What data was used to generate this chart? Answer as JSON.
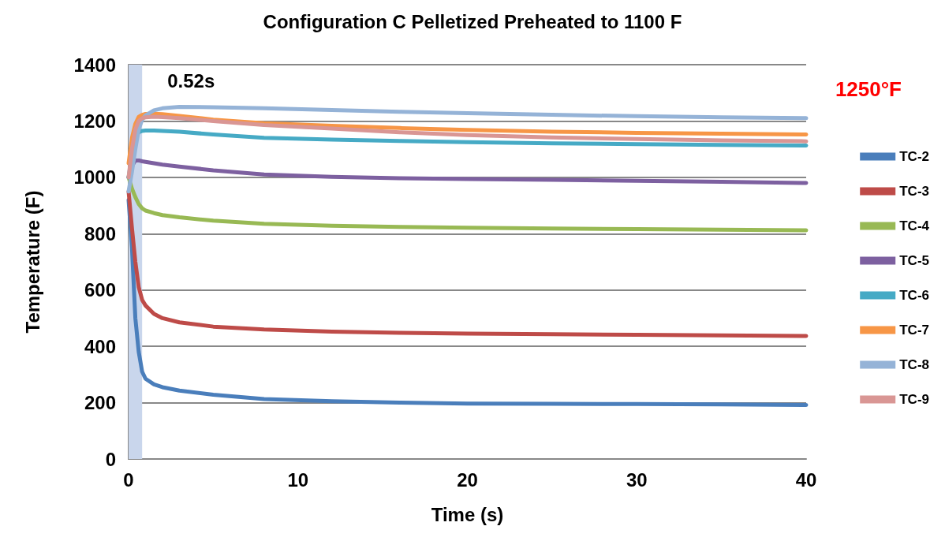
{
  "chart_data": {
    "type": "line",
    "title": "Configuration C Pelletized Preheated to 1100 F",
    "xlabel": "Time (s)",
    "ylabel": "Temperature (F)",
    "x": [
      0,
      0.2,
      0.4,
      0.6,
      0.8,
      1,
      1.5,
      2,
      3,
      5,
      8,
      12,
      16,
      20,
      25,
      30,
      35,
      40
    ],
    "series": [
      {
        "name": "TC-2",
        "color": "#4a7ebb",
        "values": [
          920,
          750,
          500,
          380,
          310,
          285,
          265,
          255,
          243,
          228,
          213,
          205,
          200,
          197,
          196,
          195,
          194,
          192
        ]
      },
      {
        "name": "TC-3",
        "color": "#be4b48",
        "values": [
          950,
          820,
          700,
          610,
          565,
          545,
          515,
          500,
          485,
          470,
          460,
          452,
          448,
          445,
          443,
          441,
          439,
          437
        ]
      },
      {
        "name": "TC-4",
        "color": "#98b954",
        "values": [
          1000,
          960,
          930,
          905,
          890,
          882,
          873,
          866,
          858,
          846,
          835,
          828,
          824,
          821,
          818,
          816,
          814,
          812
        ]
      },
      {
        "name": "TC-5",
        "color": "#7d60a0",
        "values": [
          1000,
          1040,
          1060,
          1060,
          1057,
          1055,
          1050,
          1045,
          1038,
          1025,
          1010,
          1002,
          997,
          994,
          991,
          988,
          984,
          980
        ]
      },
      {
        "name": "TC-6",
        "color": "#46aac5",
        "values": [
          1000,
          1080,
          1140,
          1160,
          1165,
          1166,
          1166,
          1165,
          1162,
          1152,
          1140,
          1134,
          1129,
          1125,
          1121,
          1118,
          1115,
          1113
        ]
      },
      {
        "name": "TC-7",
        "color": "#f79646",
        "values": [
          1050,
          1140,
          1190,
          1215,
          1222,
          1225,
          1226,
          1224,
          1218,
          1205,
          1192,
          1183,
          1175,
          1168,
          1162,
          1158,
          1155,
          1152
        ]
      },
      {
        "name": "TC-8",
        "color": "#95b3d7",
        "values": [
          950,
          1020,
          1100,
          1170,
          1205,
          1220,
          1238,
          1245,
          1250,
          1249,
          1245,
          1239,
          1233,
          1228,
          1222,
          1217,
          1213,
          1210
        ]
      },
      {
        "name": "TC-9",
        "color": "#d99694",
        "values": [
          1000,
          1100,
          1170,
          1200,
          1210,
          1213,
          1215,
          1214,
          1210,
          1200,
          1186,
          1173,
          1160,
          1150,
          1142,
          1136,
          1131,
          1128
        ]
      }
    ],
    "xlim": [
      0,
      40
    ],
    "xticks": [
      0,
      10,
      20,
      30,
      40
    ],
    "ylim": [
      0,
      1400
    ],
    "yticks": [
      0,
      200,
      400,
      600,
      800,
      1000,
      1200,
      1400
    ],
    "bands": [
      {
        "axis": "x",
        "from": 0,
        "to": 0.8,
        "label": "0.52s",
        "color": "#c9d6ec"
      }
    ],
    "annotations": [
      "1250°F"
    ],
    "grid": "y",
    "legend": "right",
    "marker": "none",
    "line_style": "solid"
  }
}
